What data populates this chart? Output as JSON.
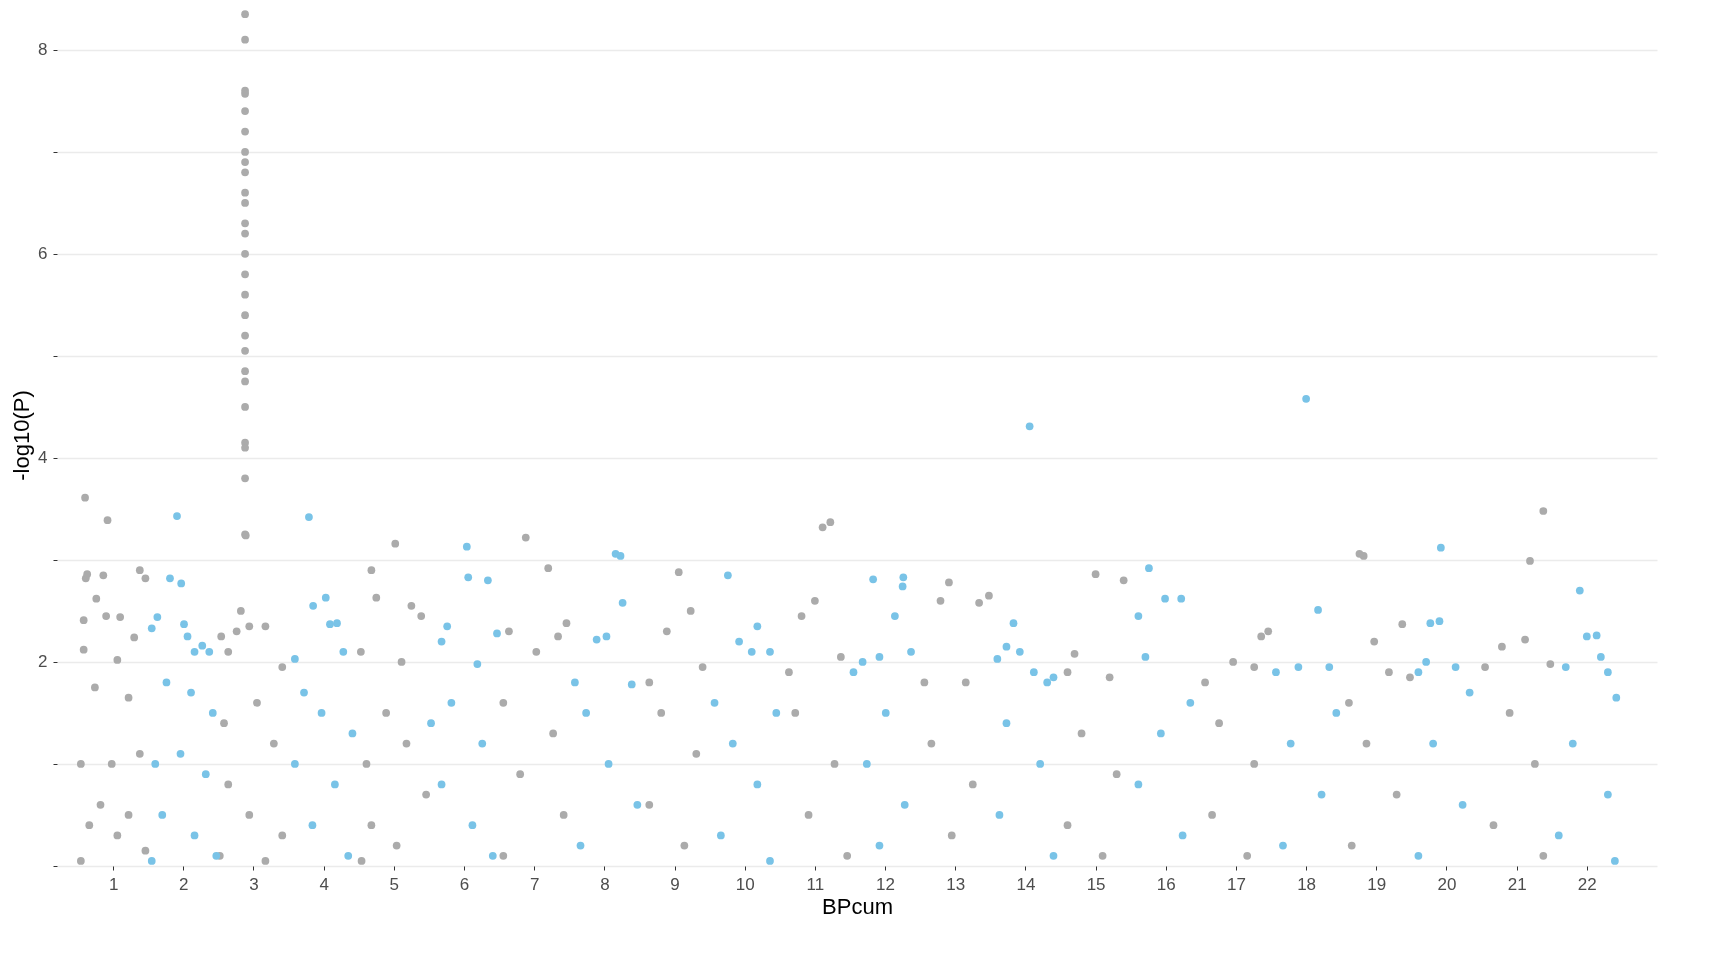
{
  "chart_data": {
    "type": "scatter",
    "xlabel": "BPcum",
    "ylabel": "-log10(P)",
    "xlim": [
      0.2,
      23.0
    ],
    "ylim": [
      0,
      8.45
    ],
    "xticks": [
      1,
      2,
      3,
      4,
      5,
      6,
      7,
      8,
      9,
      10,
      11,
      12,
      13,
      14,
      15,
      16,
      17,
      18,
      19,
      20,
      21,
      22
    ],
    "yticks": [
      {
        "value": 0,
        "label": null
      },
      {
        "value": 1,
        "label": null
      },
      2,
      {
        "value": 3,
        "label": null
      },
      4,
      {
        "value": 5,
        "label": null
      },
      6,
      {
        "value": 7,
        "label": null
      },
      8
    ],
    "grid": "y",
    "marker": "circle",
    "series": [
      {
        "color": "#ababab",
        "x": [
          0.6,
          0.61,
          0.63,
          0.58,
          0.58,
          0.76,
          0.86,
          0.92,
          0.9,
          1.1,
          1.38,
          1.46,
          1.3,
          1.06,
          0.74,
          1.22,
          0.54,
          0.98,
          1.38,
          0.66,
          1.06,
          1.46,
          0.54,
          0.82,
          1.22,
          2.88,
          2.88,
          2.88,
          2.88,
          2.88,
          2.88,
          2.88,
          2.88,
          2.88,
          2.88,
          2.88,
          2.88,
          2.88,
          2.88,
          2.88,
          2.88,
          2.88,
          2.88,
          2.88,
          2.88,
          2.88,
          2.88,
          2.88,
          2.88,
          2.88,
          2.88,
          2.89,
          2.54,
          2.64,
          2.76,
          2.82,
          2.94,
          3.17,
          3.41,
          2.58,
          3.05,
          3.29,
          2.64,
          2.94,
          3.41,
          2.52,
          3.17,
          4.53,
          4.68,
          4.75,
          5.02,
          5.11,
          5.25,
          5.39,
          4.89,
          4.61,
          5.18,
          5.46,
          4.68,
          5.04,
          4.54,
          6.64,
          6.88,
          7.2,
          7.34,
          7.46,
          7.03,
          6.56,
          7.27,
          6.8,
          7.42,
          6.56,
          8.64,
          8.89,
          9.06,
          9.23,
          9.4,
          8.81,
          9.31,
          8.64,
          9.14,
          10.63,
          10.81,
          11.0,
          11.11,
          11.22,
          11.37,
          10.72,
          11.28,
          10.91,
          11.46,
          12.56,
          12.79,
          12.91,
          13.15,
          13.34,
          13.48,
          12.66,
          13.25,
          12.95,
          14.6,
          14.7,
          15.0,
          15.4,
          15.2,
          14.8,
          15.3,
          14.6,
          15.1,
          16.56,
          16.96,
          17.26,
          17.36,
          17.46,
          16.76,
          17.26,
          16.66,
          17.16,
          18.61,
          18.76,
          18.82,
          18.97,
          19.18,
          19.37,
          19.48,
          18.86,
          19.29,
          18.65,
          20.55,
          20.79,
          21.12,
          21.19,
          21.38,
          21.48,
          20.9,
          21.26,
          20.67,
          21.38
        ],
        "values": [
          3.61,
          2.82,
          2.86,
          2.41,
          2.12,
          2.62,
          2.85,
          3.39,
          2.45,
          2.44,
          2.9,
          2.82,
          2.24,
          2.02,
          1.75,
          1.65,
          1.0,
          1.0,
          1.1,
          0.4,
          0.3,
          0.15,
          0.05,
          0.6,
          0.5,
          8.35,
          8.1,
          7.6,
          7.57,
          7.4,
          7.2,
          7.0,
          6.9,
          6.8,
          6.6,
          6.5,
          6.3,
          6.2,
          6.0,
          5.8,
          5.6,
          5.4,
          5.2,
          5.05,
          4.85,
          4.75,
          4.5,
          4.15,
          4.1,
          3.8,
          3.25,
          3.24,
          2.25,
          2.1,
          2.3,
          2.5,
          2.35,
          2.35,
          1.95,
          1.4,
          1.6,
          1.2,
          0.8,
          0.5,
          0.3,
          0.1,
          0.05,
          2.1,
          2.9,
          2.63,
          3.16,
          2.0,
          2.55,
          2.45,
          1.5,
          1.0,
          1.2,
          0.7,
          0.4,
          0.2,
          0.05,
          2.3,
          3.22,
          2.92,
          2.25,
          2.38,
          2.1,
          1.6,
          1.3,
          0.9,
          0.5,
          0.1,
          1.8,
          2.3,
          2.88,
          2.5,
          1.95,
          1.5,
          1.1,
          0.6,
          0.2,
          1.9,
          2.45,
          2.6,
          3.32,
          3.37,
          2.05,
          1.5,
          1.0,
          0.5,
          0.1,
          1.8,
          2.6,
          2.78,
          1.8,
          2.58,
          2.65,
          1.2,
          0.8,
          0.3,
          1.9,
          2.08,
          2.86,
          2.8,
          1.85,
          1.3,
          0.9,
          0.4,
          0.1,
          1.8,
          2.0,
          1.95,
          2.25,
          2.3,
          1.4,
          1.0,
          0.5,
          0.1,
          1.6,
          3.06,
          3.04,
          2.2,
          1.9,
          2.37,
          1.85,
          1.2,
          0.7,
          0.2,
          1.95,
          2.15,
          2.22,
          2.99,
          3.48,
          1.98,
          1.5,
          1.0,
          0.4,
          0.1
        ]
      },
      {
        "color": "#79c3e7",
        "x": [
          1.55,
          1.63,
          1.81,
          1.91,
          1.97,
          2.01,
          2.06,
          2.16,
          2.27,
          2.37,
          1.76,
          2.11,
          2.42,
          1.6,
          1.96,
          2.32,
          1.7,
          2.16,
          2.47,
          1.55,
          3.59,
          3.79,
          3.85,
          4.03,
          4.09,
          4.19,
          4.28,
          3.72,
          3.97,
          4.41,
          3.59,
          4.16,
          3.84,
          4.35,
          5.53,
          5.68,
          5.76,
          6.04,
          6.06,
          6.34,
          6.19,
          6.47,
          5.82,
          6.26,
          5.68,
          6.12,
          6.41,
          7.58,
          7.89,
          8.03,
          8.16,
          8.23,
          8.26,
          8.39,
          7.74,
          8.06,
          8.47,
          7.66,
          9.57,
          9.76,
          9.92,
          10.1,
          10.18,
          10.36,
          10.45,
          9.83,
          10.18,
          9.66,
          10.36,
          11.55,
          11.68,
          11.83,
          11.92,
          12.14,
          12.25,
          12.26,
          12.37,
          12.01,
          11.74,
          12.28,
          11.92,
          13.6,
          13.73,
          13.83,
          13.92,
          14.06,
          14.12,
          14.31,
          14.4,
          13.73,
          14.21,
          13.63,
          14.4,
          15.61,
          15.71,
          15.76,
          15.99,
          16.22,
          16.35,
          15.93,
          15.61,
          16.24,
          17.57,
          17.89,
          18.0,
          18.17,
          18.33,
          18.43,
          17.78,
          18.22,
          17.67,
          19.6,
          19.71,
          19.77,
          19.9,
          19.92,
          20.13,
          20.33,
          19.81,
          20.23,
          19.6,
          21.7,
          21.9,
          22.0,
          22.14,
          22.2,
          22.3,
          22.42,
          21.8,
          22.3,
          21.6,
          22.4
        ],
        "values": [
          2.33,
          2.44,
          2.82,
          3.43,
          2.77,
          2.37,
          2.25,
          2.1,
          2.16,
          2.1,
          1.8,
          1.7,
          1.5,
          1.0,
          1.1,
          0.9,
          0.5,
          0.3,
          0.1,
          0.05,
          2.03,
          3.42,
          2.55,
          2.63,
          2.37,
          2.38,
          2.1,
          1.7,
          1.5,
          1.3,
          1.0,
          0.8,
          0.4,
          0.1,
          1.4,
          2.2,
          2.35,
          3.13,
          2.83,
          2.8,
          1.98,
          2.28,
          1.6,
          1.2,
          0.8,
          0.4,
          0.1,
          1.8,
          2.22,
          2.25,
          3.06,
          3.04,
          2.58,
          1.78,
          1.5,
          1.0,
          0.6,
          0.2,
          1.6,
          2.85,
          2.2,
          2.1,
          2.35,
          2.1,
          1.5,
          1.2,
          0.8,
          0.3,
          0.05,
          1.9,
          2.0,
          2.81,
          2.05,
          2.45,
          2.74,
          2.83,
          2.1,
          1.5,
          1.0,
          0.6,
          0.2,
          2.03,
          2.15,
          2.38,
          2.1,
          4.31,
          1.9,
          1.8,
          1.85,
          1.4,
          1.0,
          0.5,
          0.1,
          2.45,
          2.05,
          2.92,
          2.62,
          2.62,
          1.6,
          1.3,
          0.8,
          0.3,
          1.9,
          1.95,
          4.58,
          2.51,
          1.95,
          1.5,
          1.2,
          0.7,
          0.2,
          1.9,
          2.0,
          2.38,
          2.4,
          3.12,
          1.95,
          1.7,
          1.2,
          0.6,
          0.1,
          1.95,
          2.7,
          2.25,
          2.26,
          2.05,
          1.9,
          1.65,
          1.2,
          0.7,
          0.3,
          0.05
        ]
      }
    ]
  }
}
